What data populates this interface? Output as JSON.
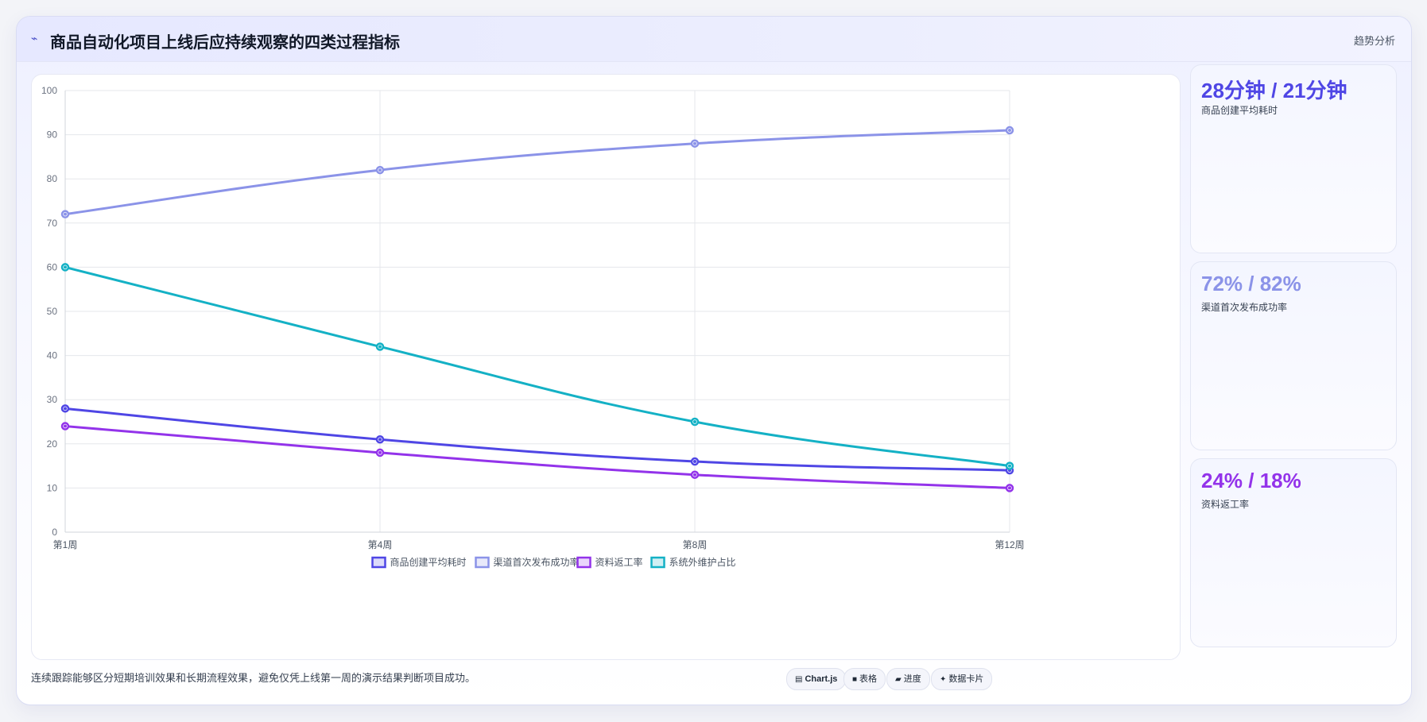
{
  "header": {
    "icon": "trend-icon",
    "title": "商品自动化项目上线后应持续观察的四类过程指标",
    "tag": "趋势分析"
  },
  "kpis": [
    {
      "value": "28分钟 / 21分钟",
      "label": "商品创建平均耗时",
      "color": "#4f46e5"
    },
    {
      "value": "72% / 82%",
      "label": "渠道首次发布成功率",
      "color": "#8b93e8"
    },
    {
      "value": "24% / 18%",
      "label": "资料返工率",
      "color": "#9333ea"
    }
  ],
  "footer": {
    "note": "连续跟踪能够区分短期培训效果和长期流程效果，避免仅凭上线第一周的演示结果判断项目成功。",
    "chips": [
      {
        "icon": "chart-icon",
        "glyph": "▤",
        "label": "Chart.js"
      },
      {
        "icon": "table-icon",
        "glyph": "■",
        "label": "表格"
      },
      {
        "icon": "progress-icon",
        "glyph": "▰",
        "label": "进度"
      },
      {
        "icon": "card-icon",
        "glyph": "✦",
        "label": "数据卡片"
      }
    ]
  },
  "chart_data": {
    "type": "line",
    "categories": [
      "第1周",
      "第4周",
      "第8周",
      "第12周"
    ],
    "ylim": [
      0,
      100
    ],
    "yticks": [
      0,
      10,
      20,
      30,
      40,
      50,
      60,
      70,
      80,
      90,
      100
    ],
    "grid": true,
    "legend": "bottom",
    "series": [
      {
        "name": "商品创建平均耗时",
        "values": [
          28,
          21,
          16,
          14
        ],
        "color": "#4f46e5"
      },
      {
        "name": "渠道首次发布成功率",
        "values": [
          72,
          82,
          88,
          91
        ],
        "color": "#8b93e8"
      },
      {
        "name": "资料返工率",
        "values": [
          24,
          18,
          13,
          10
        ],
        "color": "#9333ea"
      },
      {
        "name": "系统外维护占比",
        "values": [
          60,
          42,
          25,
          15
        ],
        "color": "#14b1c5"
      }
    ]
  }
}
